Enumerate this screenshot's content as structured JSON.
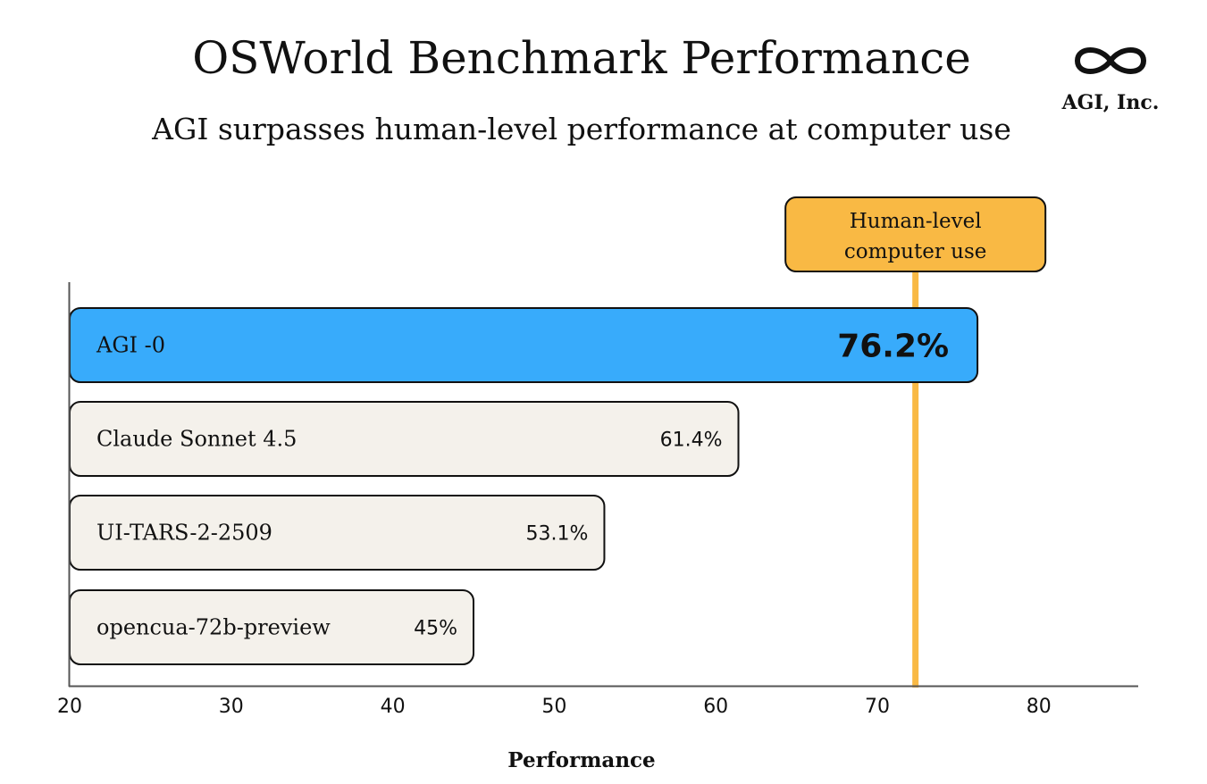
{
  "colors": {
    "highlight_bar": "#38ABFB",
    "default_bar": "#F4F1EB",
    "reference": "#F9B944",
    "stroke": "#111111",
    "axis": "#555555"
  },
  "logo": {
    "icon": "infinity-icon",
    "text": "AGI, Inc."
  },
  "chart_data": {
    "type": "bar",
    "orientation": "horizontal",
    "title": "OSWorld Benchmark Performance",
    "subtitle": "AGI surpasses human-level performance at computer use",
    "xlabel": "Performance",
    "ylabel": "",
    "xlim": [
      20,
      86
    ],
    "xticks": [
      20,
      30,
      40,
      50,
      60,
      70,
      80
    ],
    "grid": false,
    "categories": [
      "AGI -0",
      "Claude Sonnet 4.5",
      "UI-TARS-2-2509",
      "opencua-72b-preview"
    ],
    "values": [
      76.2,
      61.4,
      53.1,
      45
    ],
    "value_labels": [
      "76.2%",
      "61.4%",
      "53.1%",
      "45%"
    ],
    "highlighted": [
      "AGI -0"
    ],
    "reference_line": {
      "value": 72.36,
      "label_lines": [
        "Human-level",
        "computer use"
      ]
    }
  }
}
